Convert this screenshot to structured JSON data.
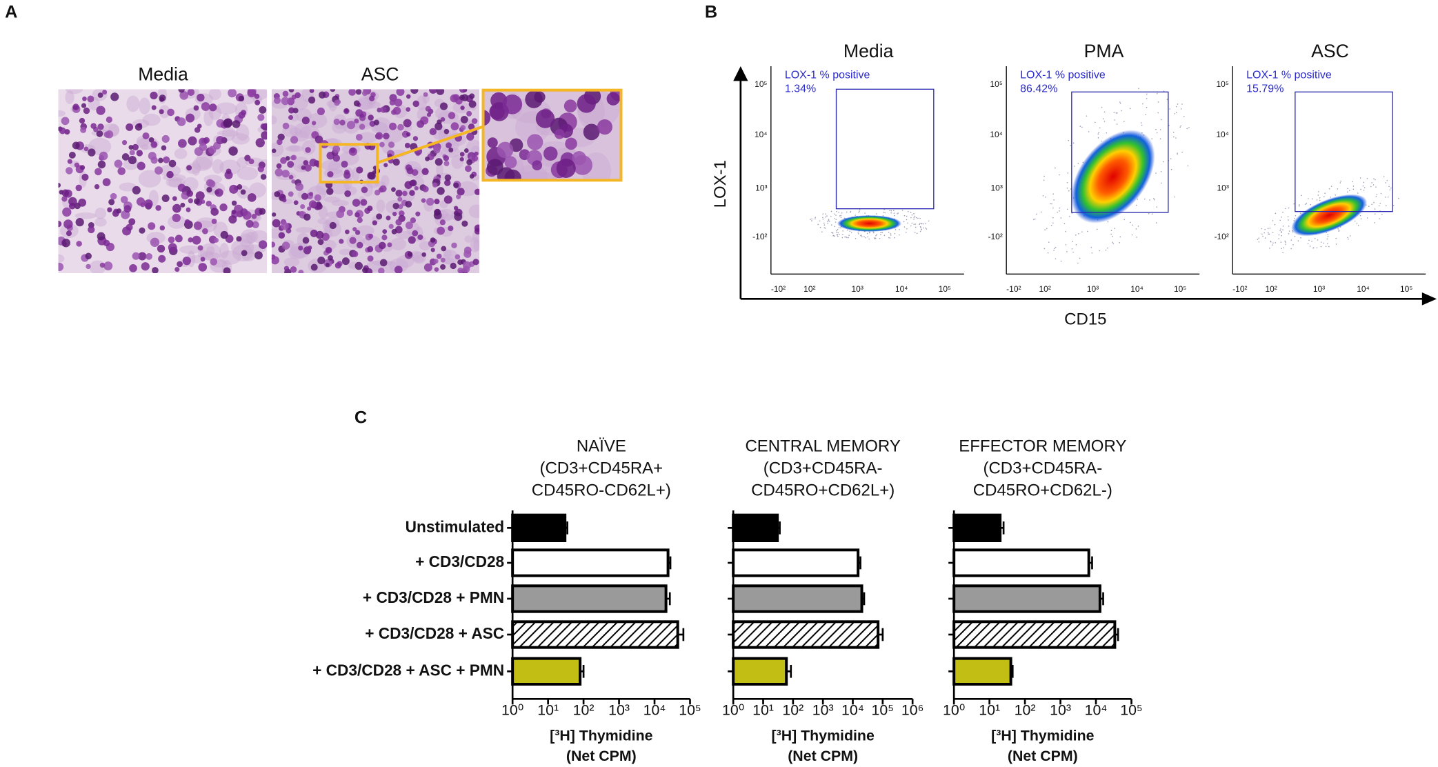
{
  "panel_labels": [
    "A",
    "B",
    "C"
  ],
  "panel_a": {
    "titles": [
      "Media",
      "ASC"
    ]
  },
  "panel_b": {
    "y_label": "LOX-1",
    "x_label": "CD15",
    "gate_label": "LOX-1 % positive",
    "plots": [
      {
        "title": "Media",
        "percent": "1.34%"
      },
      {
        "title": "PMA",
        "percent": "86.42%"
      },
      {
        "title": "ASC",
        "percent": "15.79%"
      }
    ],
    "yticks": [
      "10⁵",
      "10⁴",
      "10³",
      "-10²"
    ],
    "xticks": [
      "-10²",
      "10²",
      "10³",
      "10⁴",
      "10⁵"
    ]
  },
  "chart_data": [
    {
      "type": "barh",
      "title": [
        "NAÏVE",
        "(CD3+CD45RA+",
        "CD45RO-CD62L+)"
      ],
      "categories": [
        "Unstimulated",
        "+ CD3/CD28",
        "+ CD3/CD28 + PMN",
        "+ CD3/CD28 + ASC",
        "+ CD3/CD28 + ASC + PMN"
      ],
      "values": [
        30,
        24000,
        21000,
        45000,
        80
      ],
      "errors": [
        5,
        4000,
        6000,
        20000,
        20
      ],
      "colors": [
        "#000000",
        "#ffffff",
        "#9a9a9a",
        "hatch",
        "#c2be14"
      ],
      "log": true,
      "xlim": [
        1,
        100000
      ],
      "xticks": [
        {
          "value": 1,
          "label": "10⁰"
        },
        {
          "value": 10,
          "label": "10¹"
        },
        {
          "value": 100,
          "label": "10²"
        },
        {
          "value": 1000,
          "label": "10³"
        },
        {
          "value": 10000,
          "label": "10⁴"
        },
        {
          "value": 100000,
          "label": "10⁵"
        }
      ],
      "xlabel": [
        "[³H] Thymidine",
        "(Net CPM)"
      ]
    },
    {
      "type": "barh",
      "title": [
        "CENTRAL MEMORY",
        "(CD3+CD45RA-",
        "CD45RO+CD62L+)"
      ],
      "values": [
        30,
        15000,
        20000,
        70000,
        60
      ],
      "errors": [
        6,
        3000,
        4000,
        30000,
        25
      ],
      "colors": [
        "#000000",
        "#ffffff",
        "#9a9a9a",
        "hatch",
        "#c2be14"
      ],
      "log": true,
      "xlim": [
        1,
        1000000
      ],
      "xticks": [
        {
          "value": 1,
          "label": "10⁰"
        },
        {
          "value": 10,
          "label": "10¹"
        },
        {
          "value": 100,
          "label": "10²"
        },
        {
          "value": 1000,
          "label": "10³"
        },
        {
          "value": 10000,
          "label": "10⁴"
        },
        {
          "value": 100000,
          "label": "10⁵"
        },
        {
          "value": 1000000,
          "label": "10⁶"
        }
      ],
      "xlabel": [
        "[³H] Thymidine",
        "(Net CPM)"
      ]
    },
    {
      "type": "barh",
      "title": [
        "EFFECTOR MEMORY",
        "(CD3+CD45RA-",
        "CD45RO+CD62L-)"
      ],
      "values": [
        20,
        6300,
        13000,
        34000,
        40
      ],
      "errors": [
        5,
        1500,
        3000,
        8000,
        5
      ],
      "colors": [
        "#000000",
        "#ffffff",
        "#9a9a9a",
        "hatch",
        "#c2be14"
      ],
      "log": true,
      "xlim": [
        1,
        100000
      ],
      "xticks": [
        {
          "value": 1,
          "label": "10⁰"
        },
        {
          "value": 10,
          "label": "10¹"
        },
        {
          "value": 100,
          "label": "10²"
        },
        {
          "value": 1000,
          "label": "10³"
        },
        {
          "value": 10000,
          "label": "10⁴"
        },
        {
          "value": 100000,
          "label": "10⁵"
        }
      ],
      "xlabel": [
        "[³H] Thymidine",
        "(Net CPM)"
      ]
    }
  ]
}
